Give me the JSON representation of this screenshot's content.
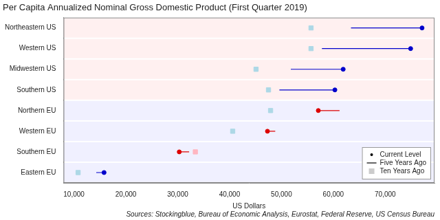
{
  "chart_data": {
    "type": "dumbbell",
    "title": "Per Capita Annualized Nominal Gross Domestic Product (First Quarter 2019)",
    "xlabel": "US Dollars",
    "source": "Sources: Stockingblue, Bureau of Economic Analysis, Eurostat, Federal Reserve, US Census Bureau",
    "orientation": "horizontal",
    "categories": [
      "Northeastern US",
      "Western US",
      "Midwestern US",
      "Southern US",
      "Northern EU",
      "Western EU",
      "Southern EU",
      "Eastern EU"
    ],
    "series": [
      {
        "name": "Current Level",
        "marker": "circle",
        "color": "#000000",
        "values": [
          77100,
          74900,
          61900,
          60300,
          57100,
          47300,
          30300,
          15800
        ],
        "colors": [
          "#0000cc",
          "#0000cc",
          "#0000cc",
          "#0000cc",
          "#dd0000",
          "#dd0000",
          "#dd0000",
          "#0000cc"
        ]
      },
      {
        "name": "Five Years Ago",
        "marker": "line",
        "color": "#000000",
        "values": [
          63400,
          57800,
          51800,
          49600,
          61200,
          48800,
          32200,
          14300
        ],
        "colors": [
          "#0000cc",
          "#0000cc",
          "#0000cc",
          "#0000cc",
          "#dd0000",
          "#dd0000",
          "#dd0000",
          "#0000cc"
        ]
      },
      {
        "name": "Ten Years Ago",
        "marker": "square",
        "color": "#cccccc",
        "values": [
          55700,
          55700,
          45100,
          47500,
          47900,
          40600,
          33400,
          10800
        ],
        "colors": [
          "#add8e6",
          "#add8e6",
          "#add8e6",
          "#add8e6",
          "#add8e6",
          "#add8e6",
          "#ffb6c1",
          "#add8e6"
        ]
      }
    ],
    "xlim": [
      8000,
      79500
    ],
    "xticks": [
      {
        "value": 10000,
        "label": "10,000"
      },
      {
        "value": 20000,
        "label": "20,000"
      },
      {
        "value": 30000,
        "label": "30,000"
      },
      {
        "value": 40000,
        "label": "40,000"
      },
      {
        "value": 50000,
        "label": "50,000"
      },
      {
        "value": 60000,
        "label": "60,000"
      },
      {
        "value": 70000,
        "label": "70,000"
      }
    ],
    "grid": false,
    "legend": "lower right"
  }
}
